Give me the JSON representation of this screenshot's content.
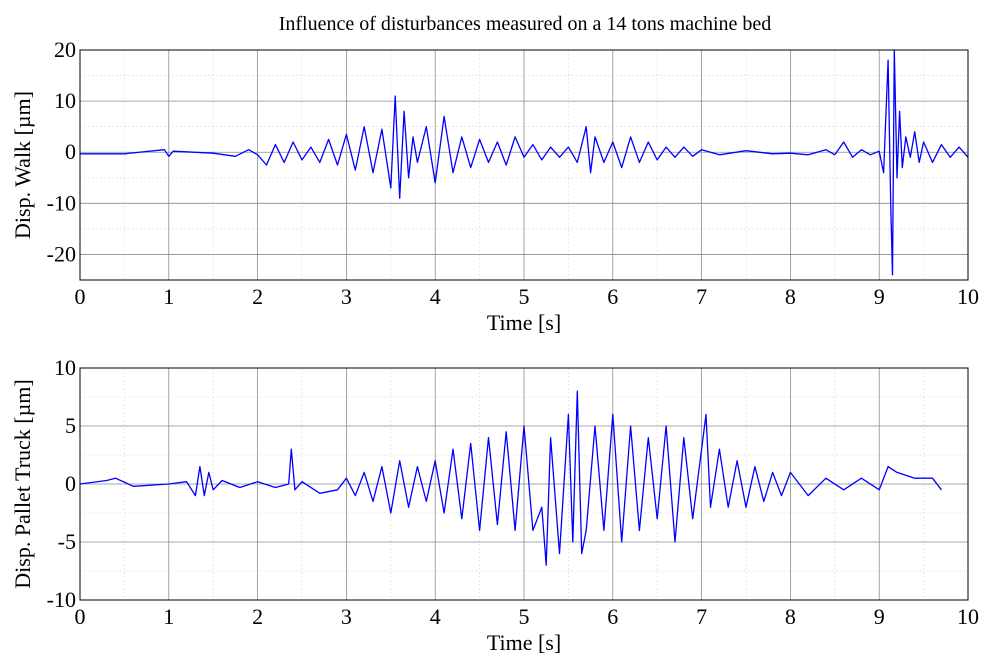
{
  "figure_title": "Influence of disturbances measured on a 14 tons machine bed",
  "chart_data": [
    {
      "type": "line",
      "ylabel": "Disp. Walk [µm]",
      "xlabel": "Time [s]",
      "xlim": [
        0,
        10
      ],
      "ylim": [
        -25,
        20
      ],
      "xticks": [
        "0",
        "1",
        "2",
        "3",
        "4",
        "5",
        "6",
        "7",
        "8",
        "9",
        "10"
      ],
      "yticks": [
        "20",
        "10",
        "0",
        "-10",
        "-20"
      ],
      "ytick_values": [
        20,
        10,
        0,
        -10,
        -20
      ],
      "grid": true,
      "color": "#0000ff",
      "x": [
        0,
        0.5,
        0.95,
        1.0,
        1.05,
        1.5,
        1.75,
        1.9,
        2.0,
        2.1,
        2.2,
        2.3,
        2.4,
        2.5,
        2.6,
        2.7,
        2.8,
        2.9,
        3.0,
        3.1,
        3.2,
        3.3,
        3.4,
        3.5,
        3.55,
        3.6,
        3.65,
        3.7,
        3.75,
        3.8,
        3.9,
        4.0,
        4.1,
        4.2,
        4.3,
        4.4,
        4.5,
        4.6,
        4.7,
        4.8,
        4.9,
        5.0,
        5.1,
        5.2,
        5.3,
        5.4,
        5.5,
        5.6,
        5.7,
        5.75,
        5.8,
        5.9,
        6.0,
        6.1,
        6.2,
        6.3,
        6.4,
        6.5,
        6.6,
        6.7,
        6.8,
        6.9,
        7.0,
        7.2,
        7.5,
        7.8,
        8.0,
        8.2,
        8.4,
        8.5,
        8.6,
        8.7,
        8.8,
        8.9,
        9.0,
        9.05,
        9.1,
        9.13,
        9.15,
        9.17,
        9.2,
        9.23,
        9.26,
        9.3,
        9.35,
        9.4,
        9.45,
        9.5,
        9.6,
        9.7,
        9.8,
        9.9,
        10.0
      ],
      "y": [
        -0.3,
        -0.3,
        0.5,
        -0.8,
        0.2,
        -0.2,
        -0.8,
        0.5,
        -0.5,
        -2.5,
        1.5,
        -2,
        2,
        -1.5,
        1,
        -2,
        2.5,
        -2.5,
        3.5,
        -3.5,
        5,
        -4,
        4.5,
        -7,
        11,
        -9,
        8,
        -5,
        3,
        -2,
        5,
        -6,
        7,
        -4,
        3,
        -3,
        2.5,
        -2,
        2,
        -2.5,
        3,
        -1,
        1.5,
        -1.5,
        1,
        -1,
        1,
        -2,
        5,
        -4,
        3,
        -2,
        2,
        -3,
        3,
        -2,
        2,
        -1.5,
        1,
        -1,
        1,
        -0.8,
        0.5,
        -0.5,
        0.3,
        -0.3,
        -0.2,
        -0.5,
        0.5,
        -0.5,
        2,
        -1,
        0.5,
        -0.5,
        0.2,
        -4,
        18,
        -10,
        -24,
        20,
        -5,
        8,
        -3,
        3,
        -1,
        4,
        -2,
        2,
        -2,
        1.5,
        -1,
        1,
        -1
      ]
    },
    {
      "type": "line",
      "ylabel": "Disp. Pallet Truck [µm]",
      "xlabel": "Time [s]",
      "xlim": [
        0,
        10
      ],
      "ylim": [
        -10,
        10
      ],
      "xticks": [
        "0",
        "1",
        "2",
        "3",
        "4",
        "5",
        "6",
        "7",
        "8",
        "9",
        "10"
      ],
      "yticks": [
        "10",
        "5",
        "0",
        "-5",
        "-10"
      ],
      "ytick_values": [
        10,
        5,
        0,
        -5,
        -10
      ],
      "grid": true,
      "color": "#0000ff",
      "x": [
        0,
        0.3,
        0.4,
        0.6,
        1.0,
        1.2,
        1.3,
        1.35,
        1.4,
        1.45,
        1.5,
        1.6,
        1.8,
        2.0,
        2.2,
        2.35,
        2.38,
        2.42,
        2.5,
        2.7,
        2.9,
        3.0,
        3.1,
        3.2,
        3.3,
        3.4,
        3.5,
        3.6,
        3.7,
        3.8,
        3.9,
        4.0,
        4.1,
        4.2,
        4.3,
        4.4,
        4.5,
        4.6,
        4.7,
        4.8,
        4.9,
        5.0,
        5.1,
        5.2,
        5.25,
        5.3,
        5.4,
        5.5,
        5.55,
        5.6,
        5.65,
        5.7,
        5.8,
        5.9,
        6.0,
        6.1,
        6.2,
        6.3,
        6.4,
        6.5,
        6.6,
        6.7,
        6.8,
        6.9,
        7.0,
        7.05,
        7.1,
        7.2,
        7.3,
        7.4,
        7.5,
        7.6,
        7.7,
        7.8,
        7.9,
        8.0,
        8.2,
        8.4,
        8.6,
        8.8,
        9.0,
        9.1,
        9.2,
        9.4,
        9.6,
        9.7
      ],
      "y": [
        0,
        0.3,
        0.5,
        -0.2,
        0,
        0.2,
        -1,
        1.5,
        -1,
        1,
        -0.5,
        0.3,
        -0.3,
        0.2,
        -0.3,
        0,
        3,
        -0.5,
        0.2,
        -0.8,
        -0.5,
        0.5,
        -1,
        1,
        -1.5,
        1.5,
        -2.5,
        2,
        -2,
        1.5,
        -1.5,
        2,
        -2.5,
        3,
        -3,
        3.5,
        -4,
        4,
        -3.5,
        4.5,
        -4,
        5,
        -4,
        -2,
        -7,
        4,
        -6,
        6,
        -5,
        8,
        -6,
        -4,
        5,
        -4,
        6,
        -5,
        5,
        -4,
        4,
        -3,
        5,
        -5,
        4,
        -3,
        3,
        6,
        -2,
        3,
        -2,
        2,
        -2,
        1.5,
        -1.5,
        1,
        -1,
        1,
        -1,
        0.5,
        -0.5,
        0.5,
        -0.5,
        1.5,
        1,
        0.5,
        0.5,
        -0.5
      ]
    }
  ]
}
